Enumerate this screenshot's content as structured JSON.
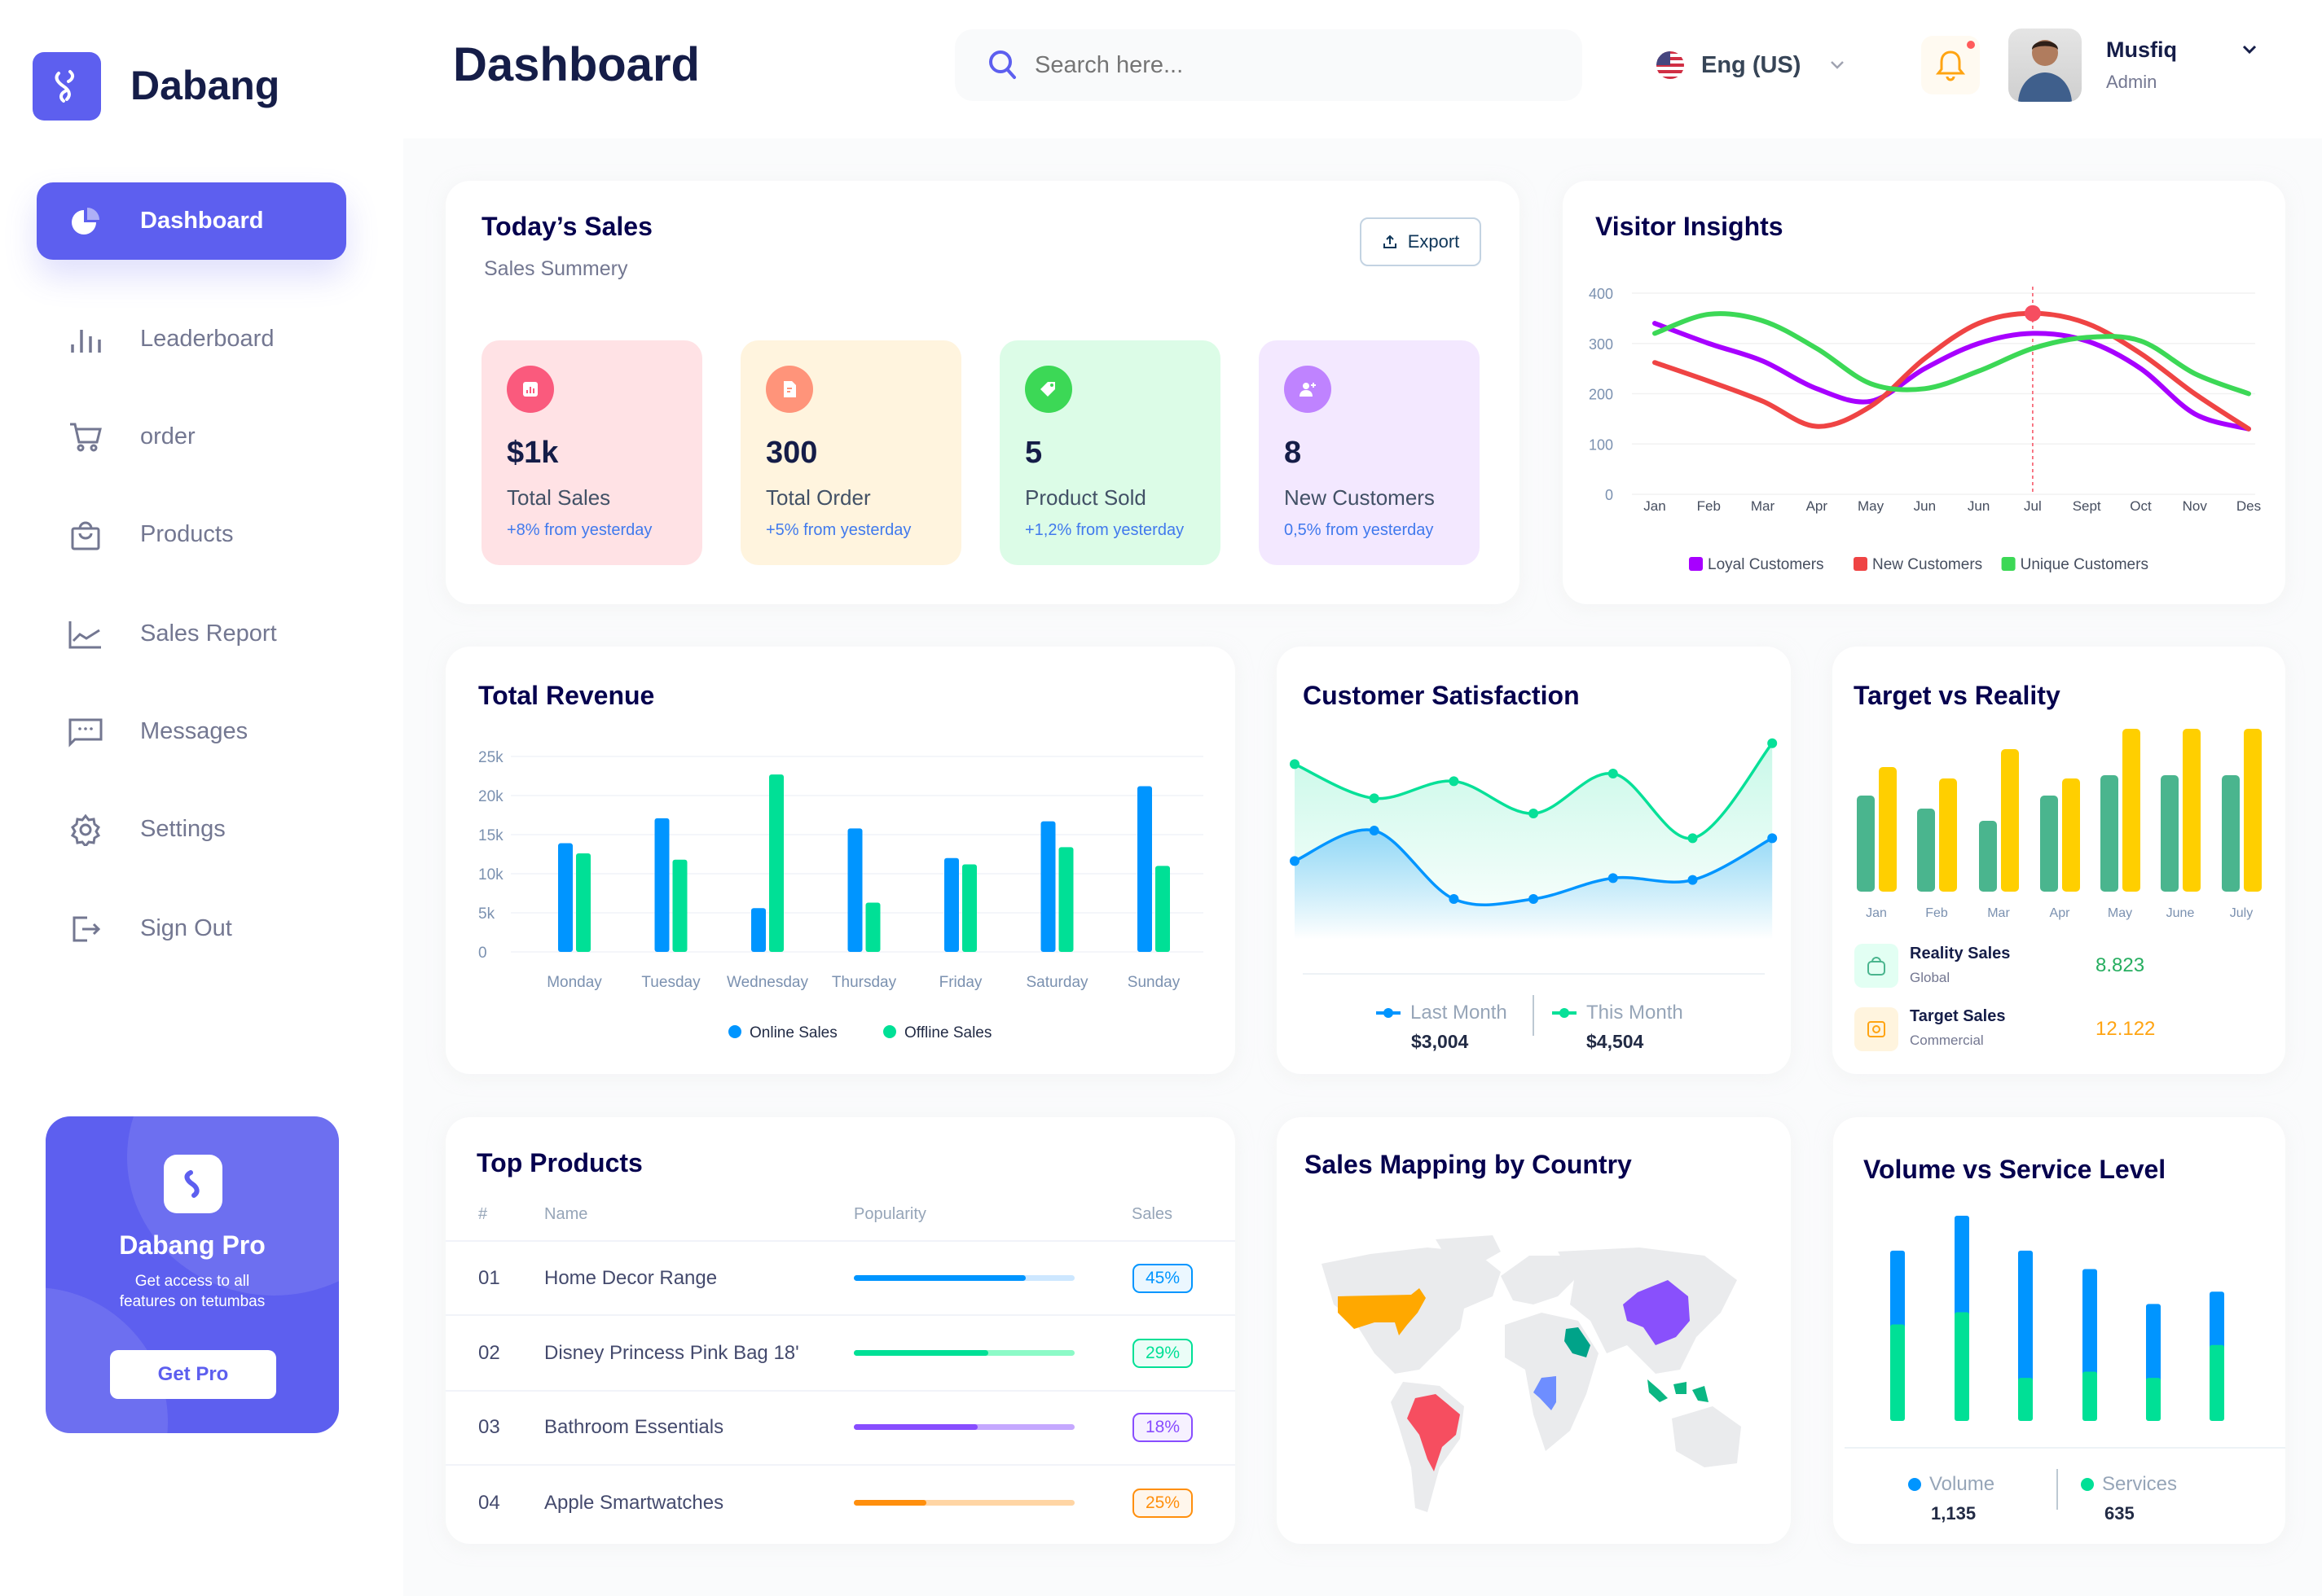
{
  "brand": {
    "name": "Dabang"
  },
  "sidebar": {
    "items": [
      {
        "label": "Dashboard",
        "icon": "pie-chart-icon",
        "active": true
      },
      {
        "label": "Leaderboard",
        "icon": "bar-chart-icon"
      },
      {
        "label": "order",
        "icon": "cart-icon"
      },
      {
        "label": "Products",
        "icon": "shopping-bag-icon"
      },
      {
        "label": "Sales Report",
        "icon": "line-chart-icon"
      },
      {
        "label": "Messages",
        "icon": "message-icon"
      },
      {
        "label": "Settings",
        "icon": "gear-icon"
      },
      {
        "label": "Sign Out",
        "icon": "sign-out-icon"
      }
    ],
    "promo": {
      "title": "Dabang Pro",
      "line1": "Get access to all",
      "line2": "features on tetumbas",
      "button": "Get Pro"
    }
  },
  "header": {
    "title": "Dashboard",
    "search_placeholder": "Search here...",
    "language": "Eng (US)",
    "user_name": "Musfiq",
    "user_role": "Admin",
    "notification_dot": true
  },
  "colors": {
    "primary": "#5D5FEF",
    "title": "#151D48",
    "muted": "#737791"
  },
  "todays_sales": {
    "title": "Today’s Sales",
    "subtitle": "Sales Summery",
    "export_label": "Export",
    "stats": [
      {
        "value": "$1k",
        "label": "Total Sales",
        "change": "+8% from yesterday",
        "bg": "#FFE2E5",
        "icon_bg": "#FA5A7D",
        "icon": "bar-chart-icon"
      },
      {
        "value": "300",
        "label": "Total Order",
        "change": "+5% from yesterday",
        "bg": "#FFF4DE",
        "icon_bg": "#FF947A",
        "icon": "document-icon"
      },
      {
        "value": "5",
        "label": "Product Sold",
        "change": "+1,2% from yesterday",
        "bg": "#DCFCE7",
        "icon_bg": "#3CD856",
        "icon": "tag-icon"
      },
      {
        "value": "8",
        "label": "New Customers",
        "change": "0,5% from yesterday",
        "bg": "#F3E8FF",
        "icon_bg": "#BF83FF",
        "icon": "add-user-icon"
      }
    ]
  },
  "visitor_insights": {
    "title": "Visitor Insights"
  },
  "total_revenue": {
    "title": "Total Revenue"
  },
  "customer_satisfaction": {
    "title": "Customer Satisfaction",
    "last_label": "Last Month",
    "last_value": "$3,004",
    "this_label": "This Month",
    "this_value": "$4,504"
  },
  "target_reality": {
    "title": "Target vs Reality",
    "reality": {
      "label": "Reality Sales",
      "sub": "Global",
      "value": "8.823",
      "color": "#27AE60"
    },
    "target": {
      "label": "Target Sales",
      "sub": "Commercial",
      "value": "12.122",
      "color": "#FFA412"
    }
  },
  "top_products": {
    "title": "Top Products",
    "headers": [
      "#",
      "Name",
      "Popularity",
      "Sales"
    ],
    "rows": [
      {
        "num": "01",
        "name": "Home Decor Range",
        "popularity": 78,
        "sales": "45%",
        "color": "#0095FF",
        "track": "#CDE7FF"
      },
      {
        "num": "02",
        "name": "Disney Princess Pink Bag 18'",
        "popularity": 61,
        "sales": "29%",
        "color": "#00E096",
        "track": "#8CFAC7"
      },
      {
        "num": "03",
        "name": "Bathroom Essentials",
        "popularity": 56,
        "sales": "18%",
        "color": "#884DFF",
        "track": "#C5A8FF"
      },
      {
        "num": "04",
        "name": "Apple Smartwatches",
        "popularity": 33,
        "sales": "25%",
        "color": "#FF8F0D",
        "track": "#FFD5A4"
      }
    ]
  },
  "sales_map": {
    "title": "Sales Mapping by Country",
    "highlight_colors": [
      "#FFA800",
      "#F64E60",
      "#8950FC",
      "#00A389",
      "#6E8EFF",
      "#0BB783"
    ]
  },
  "volume_service": {
    "title": "Volume vs Service Level",
    "volume_label": "Volume",
    "volume_value": "1,135",
    "services_label": "Services",
    "services_value": "635"
  },
  "chart_data": [
    {
      "id": "visitor",
      "type": "line",
      "title": "Visitor Insights",
      "categories": [
        "Jan",
        "Feb",
        "Mar",
        "Apr",
        "May",
        "Jun",
        "Jun",
        "Jul",
        "Sept",
        "Oct",
        "Nov",
        "Des"
      ],
      "yticks": [
        0,
        100,
        200,
        300,
        400
      ],
      "ylim": [
        0,
        400
      ],
      "grid": true,
      "legend": "bottom",
      "highlight_index": 7,
      "series": [
        {
          "name": "Loyal Customers",
          "color": "#A700FF",
          "values": [
            340,
            300,
            265,
            210,
            185,
            250,
            300,
            320,
            305,
            250,
            160,
            130
          ]
        },
        {
          "name": "New Customers",
          "color": "#EF4444",
          "values": [
            262,
            225,
            185,
            135,
            175,
            270,
            340,
            360,
            340,
            280,
            200,
            130
          ]
        },
        {
          "name": "Unique Customers",
          "color": "#3CD856",
          "values": [
            320,
            358,
            345,
            290,
            220,
            210,
            245,
            290,
            312,
            305,
            240,
            200
          ]
        }
      ]
    },
    {
      "id": "revenue",
      "type": "bar",
      "title": "Total Revenue",
      "categories": [
        "Monday",
        "Tuesday",
        "Wednesday",
        "Thursday",
        "Friday",
        "Saturday",
        "Sunday"
      ],
      "yticks": [
        "0",
        "5k",
        "10k",
        "15k",
        "20k",
        "25k"
      ],
      "ylim": [
        0,
        25000
      ],
      "grid": true,
      "legend": "bottom",
      "series": [
        {
          "name": "Online Sales",
          "color": "#0095FF",
          "values": [
            13900,
            17100,
            5600,
            15800,
            12000,
            16700,
            21200
          ]
        },
        {
          "name": "Offline Sales",
          "color": "#00E096",
          "values": [
            12600,
            11800,
            22700,
            6300,
            11200,
            13400,
            11000
          ]
        }
      ]
    },
    {
      "id": "satisfaction",
      "type": "area",
      "title": "Customer Satisfaction",
      "ylim": [
        0,
        110
      ],
      "series": [
        {
          "name": "Last Month",
          "color": "#0095FF",
          "values": [
            41,
            57,
            21,
            21,
            32,
            31,
            53
          ]
        },
        {
          "name": "This Month",
          "color": "#07E098",
          "values": [
            92,
            74,
            83,
            66,
            87,
            53,
            103
          ]
        }
      ]
    },
    {
      "id": "target",
      "type": "bar",
      "title": "Target vs Reality",
      "categories": [
        "Jan",
        "Feb",
        "Mar",
        "Apr",
        "May",
        "June",
        "July"
      ],
      "ylim": [
        0,
        10
      ],
      "series": [
        {
          "name": "Reality Sales",
          "color": "#4AB58E",
          "values": [
            5.9,
            5.1,
            4.35,
            5.9,
            7.15,
            7.15,
            7.15
          ]
        },
        {
          "name": "Target Sales",
          "color": "#FFCF00",
          "values": [
            7.65,
            6.95,
            8.75,
            6.95,
            10,
            10,
            10
          ]
        }
      ]
    },
    {
      "id": "volume",
      "type": "stacked-bar",
      "title": "Volume vs Service Level",
      "ylim": [
        0,
        100
      ],
      "series": [
        {
          "name": "Services",
          "color": "#00E096",
          "values": [
            47,
            53,
            21,
            24,
            21,
            37
          ]
        },
        {
          "name": "Volume",
          "color": "#0095FF",
          "values": [
            36,
            47,
            62,
            50,
            36,
            26
          ]
        }
      ]
    }
  ]
}
